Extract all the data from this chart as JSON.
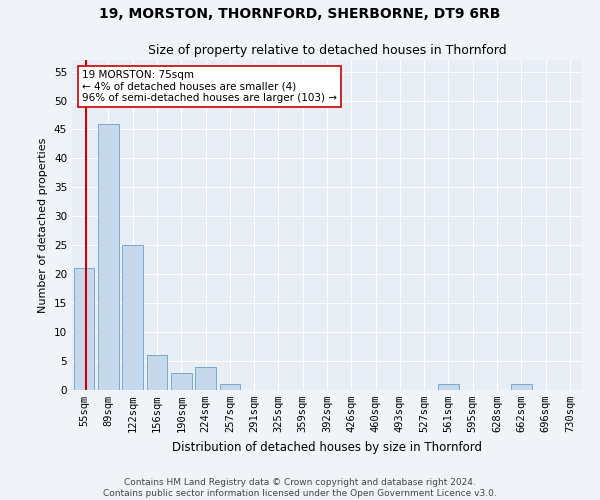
{
  "title1": "19, MORSTON, THORNFORD, SHERBORNE, DT9 6RB",
  "title2": "Size of property relative to detached houses in Thornford",
  "xlabel": "Distribution of detached houses by size in Thornford",
  "ylabel": "Number of detached properties",
  "categories": [
    "55sqm",
    "89sqm",
    "122sqm",
    "156sqm",
    "190sqm",
    "224sqm",
    "257sqm",
    "291sqm",
    "325sqm",
    "359sqm",
    "392sqm",
    "426sqm",
    "460sqm",
    "493sqm",
    "527sqm",
    "561sqm",
    "595sqm",
    "628sqm",
    "662sqm",
    "696sqm",
    "730sqm"
  ],
  "values": [
    21,
    46,
    25,
    6,
    3,
    4,
    1,
    0,
    0,
    0,
    0,
    0,
    0,
    0,
    0,
    1,
    0,
    0,
    1,
    0,
    0
  ],
  "bar_color": "#c6d9ec",
  "bar_edge_color": "#6a9fc8",
  "bar_width": 0.85,
  "vline_color": "#cc0000",
  "annotation_text": "19 MORSTON: 75sqm\n← 4% of detached houses are smaller (4)\n96% of semi-detached houses are larger (103) →",
  "annotation_box_color": "#ffffff",
  "annotation_box_edge": "#cc0000",
  "ylim": [
    0,
    57
  ],
  "yticks": [
    0,
    5,
    10,
    15,
    20,
    25,
    30,
    35,
    40,
    45,
    50,
    55
  ],
  "footer": "Contains HM Land Registry data © Crown copyright and database right 2024.\nContains public sector information licensed under the Open Government Licence v3.0.",
  "bg_color": "#e8eef6",
  "grid_color": "#ffffff",
  "title1_fontsize": 10,
  "title2_fontsize": 9,
  "xlabel_fontsize": 8.5,
  "ylabel_fontsize": 8,
  "tick_fontsize": 7.5,
  "footer_fontsize": 6.5,
  "annot_fontsize": 7.5
}
